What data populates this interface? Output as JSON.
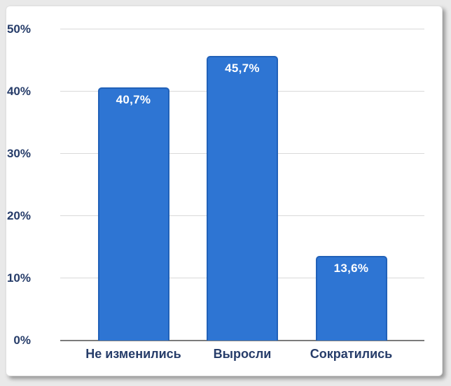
{
  "chart_data": {
    "type": "bar",
    "categories": [
      "Не изменились",
      "Выросли",
      "Сократились"
    ],
    "values": [
      40.7,
      45.7,
      13.6
    ],
    "value_labels": [
      "40,7%",
      "45,7%",
      "13,6%"
    ],
    "title": "",
    "xlabel": "",
    "ylabel": "",
    "ylim": [
      0,
      50
    ],
    "y_ticks": [
      {
        "value": 0,
        "label": "0%"
      },
      {
        "value": 10,
        "label": "10%"
      },
      {
        "value": 20,
        "label": "20%"
      },
      {
        "value": 30,
        "label": "30%"
      },
      {
        "value": 40,
        "label": "40%"
      },
      {
        "value": 50,
        "label": "50%"
      }
    ],
    "grid": true,
    "legend": "none"
  },
  "colors": {
    "page_bg": "#e9e9e9",
    "card_bg": "#ffffff",
    "bar_fill": "#2e75d3",
    "bar_border": "#2161b8",
    "value_label": "#ffffff",
    "axis_text": "#263c69",
    "gridline": "#d9d9d9",
    "axis_line": "#7b7b7b"
  }
}
